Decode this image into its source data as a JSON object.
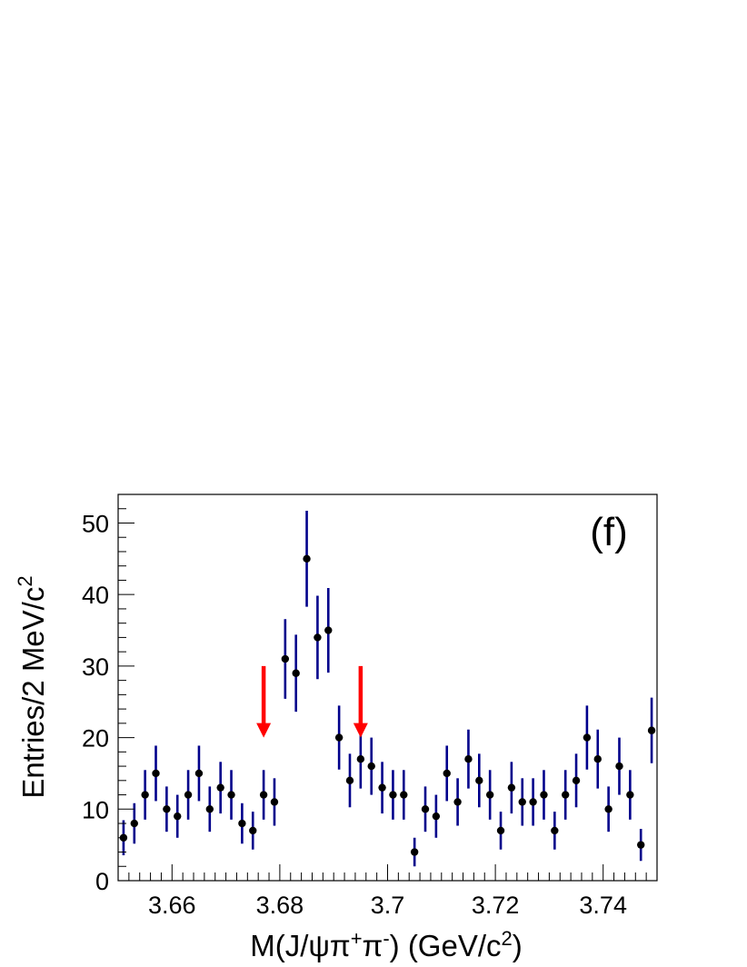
{
  "chart_data": {
    "type": "scatter",
    "panel_label": "(f)",
    "xlabel": {
      "prefix": "M(J/ψπ",
      "sup1": "+",
      "mid": "π",
      "sup2": "-",
      "suffix": ") (GeV/c",
      "sup3": "2",
      "end": ")"
    },
    "ylabel": {
      "main": "Entries/2 MeV/c",
      "sup": "2"
    },
    "xlim": [
      3.65,
      3.75
    ],
    "ylim": [
      0,
      54
    ],
    "x_ticks": [
      {
        "value": 3.66,
        "label": "3.66"
      },
      {
        "value": 3.68,
        "label": "3.68"
      },
      {
        "value": 3.7,
        "label": "3.7"
      },
      {
        "value": 3.72,
        "label": "3.72"
      },
      {
        "value": 3.74,
        "label": "3.74"
      }
    ],
    "y_ticks": [
      {
        "value": 0,
        "label": "0"
      },
      {
        "value": 10,
        "label": "10"
      },
      {
        "value": 20,
        "label": "20"
      },
      {
        "value": 30,
        "label": "30"
      },
      {
        "value": 40,
        "label": "40"
      },
      {
        "value": 50,
        "label": "50"
      }
    ],
    "x": [
      3.651,
      3.653,
      3.655,
      3.657,
      3.659,
      3.661,
      3.663,
      3.665,
      3.667,
      3.669,
      3.671,
      3.673,
      3.675,
      3.677,
      3.679,
      3.681,
      3.683,
      3.685,
      3.687,
      3.689,
      3.691,
      3.693,
      3.695,
      3.697,
      3.699,
      3.701,
      3.703,
      3.705,
      3.707,
      3.709,
      3.711,
      3.713,
      3.715,
      3.717,
      3.719,
      3.721,
      3.723,
      3.725,
      3.727,
      3.729,
      3.731,
      3.733,
      3.735,
      3.737,
      3.739,
      3.741,
      3.743,
      3.745,
      3.747,
      3.749
    ],
    "values": [
      6,
      8,
      12,
      15,
      10,
      9,
      12,
      15,
      10,
      13,
      12,
      8,
      7,
      12,
      11,
      31,
      29,
      45,
      34,
      35,
      20,
      14,
      17,
      16,
      13,
      12,
      12,
      4,
      10,
      9,
      15,
      11,
      17,
      14,
      12,
      7,
      13,
      11,
      11,
      12,
      7,
      12,
      14,
      20,
      17,
      10,
      16,
      12,
      5,
      21
    ],
    "error_model": "sqrt(N)",
    "arrows": [
      {
        "x": 3.677,
        "y_from": 30,
        "y_to": 20
      },
      {
        "x": 3.695,
        "y_from": 30,
        "y_to": 20
      }
    ],
    "colors": {
      "marker": "#000000",
      "error_bar": "#00008b",
      "arrow": "#ff0000",
      "frame": "#000000"
    },
    "grid": false
  }
}
